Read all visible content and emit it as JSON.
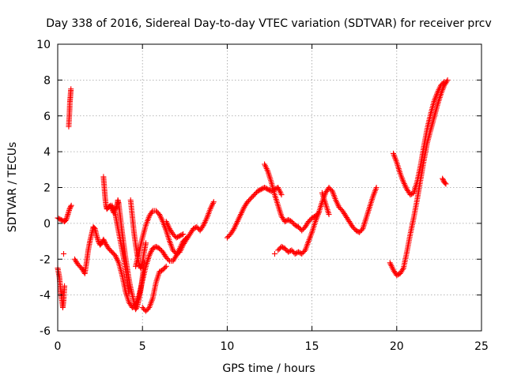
{
  "chart_data": {
    "type": "scatter",
    "title": "Day 338 of 2016, Sidereal Day-to-day VTEC variation (SDTVAR) for receiver prcv",
    "xlabel": "GPS time / hours",
    "ylabel": "SDTVAR / TECUs",
    "xlim": [
      0,
      25
    ],
    "ylim": [
      -6,
      10
    ],
    "xticks": [
      0,
      5,
      10,
      15,
      20,
      25
    ],
    "yticks": [
      -6,
      -4,
      -2,
      0,
      2,
      4,
      6,
      8,
      10
    ],
    "grid": true,
    "marker": "+",
    "color": "#ff0000",
    "series": [
      {
        "name": "SDTVAR",
        "segments": [
          [
            [
              0.0,
              0.3
            ],
            [
              0.2,
              0.2
            ],
            [
              0.4,
              0.1
            ],
            [
              0.5,
              0.2
            ],
            [
              0.6,
              0.5
            ],
            [
              0.7,
              0.8
            ],
            [
              0.8,
              1.0
            ]
          ],
          [
            [
              0.0,
              -2.5
            ],
            [
              0.1,
              -3.0
            ],
            [
              0.15,
              -3.5
            ],
            [
              0.2,
              -3.9
            ],
            [
              0.25,
              -4.3
            ],
            [
              0.3,
              -4.7
            ],
            [
              0.35,
              -4.3
            ],
            [
              0.4,
              -3.5
            ]
          ],
          [
            [
              0.35,
              -1.7
            ]
          ],
          [
            [
              0.65,
              5.4
            ],
            [
              0.7,
              6.3
            ],
            [
              0.72,
              6.8
            ],
            [
              0.75,
              7.1
            ],
            [
              0.78,
              7.5
            ]
          ],
          [
            [
              1.0,
              -2.0
            ],
            [
              1.2,
              -2.3
            ],
            [
              1.4,
              -2.5
            ],
            [
              1.6,
              -2.8
            ],
            [
              1.7,
              -2.2
            ],
            [
              1.8,
              -1.5
            ],
            [
              1.9,
              -1.0
            ],
            [
              2.0,
              -0.6
            ],
            [
              2.1,
              -0.2
            ],
            [
              2.2,
              -0.3
            ],
            [
              2.3,
              -0.7
            ],
            [
              2.4,
              -1.0
            ],
            [
              2.5,
              -1.2
            ],
            [
              2.6,
              -1.1
            ],
            [
              2.7,
              -0.9
            ],
            [
              2.8,
              -1.1
            ],
            [
              3.0,
              -1.4
            ],
            [
              3.2,
              -1.6
            ],
            [
              3.4,
              -1.8
            ],
            [
              3.6,
              -2.2
            ],
            [
              3.8,
              -2.9
            ],
            [
              4.0,
              -3.8
            ],
            [
              4.2,
              -4.4
            ],
            [
              4.4,
              -4.7
            ],
            [
              4.6,
              -4.5
            ],
            [
              4.8,
              -4.0
            ],
            [
              5.0,
              -3.2
            ],
            [
              5.2,
              -2.4
            ],
            [
              5.4,
              -1.8
            ],
            [
              5.6,
              -1.4
            ],
            [
              5.8,
              -1.3
            ],
            [
              6.0,
              -1.4
            ],
            [
              6.2,
              -1.6
            ],
            [
              6.4,
              -1.9
            ],
            [
              6.6,
              -2.1
            ],
            [
              6.8,
              -2.1
            ],
            [
              7.0,
              -1.8
            ],
            [
              7.2,
              -1.4
            ],
            [
              7.4,
              -1.0
            ],
            [
              7.6,
              -0.8
            ]
          ],
          [
            [
              2.7,
              2.6
            ],
            [
              2.75,
              2.0
            ],
            [
              2.8,
              1.4
            ],
            [
              2.85,
              1.0
            ],
            [
              2.9,
              0.8
            ],
            [
              3.0,
              0.9
            ],
            [
              3.1,
              1.0
            ],
            [
              3.2,
              0.8
            ],
            [
              3.3,
              0.6
            ],
            [
              3.4,
              0.8
            ],
            [
              3.5,
              1.0
            ],
            [
              3.55,
              1.3
            ],
            [
              3.6,
              1.1
            ],
            [
              3.7,
              0.3
            ],
            [
              3.8,
              -0.5
            ],
            [
              3.9,
              -1.2
            ],
            [
              4.0,
              -1.9
            ],
            [
              4.1,
              -2.5
            ],
            [
              4.2,
              -3.1
            ],
            [
              4.3,
              -3.6
            ],
            [
              4.4,
              -4.0
            ],
            [
              4.5,
              -4.4
            ],
            [
              4.6,
              -4.8
            ],
            [
              4.7,
              -4.6
            ],
            [
              4.8,
              -4.2
            ],
            [
              4.9,
              -3.7
            ],
            [
              5.0,
              -3.0
            ],
            [
              5.1,
              -2.2
            ]
          ],
          [
            [
              3.2,
              1.0
            ],
            [
              3.4,
              0.5
            ],
            [
              3.6,
              -0.5
            ],
            [
              3.8,
              -1.5
            ],
            [
              4.0,
              -2.5
            ],
            [
              4.1,
              -3.2
            ],
            [
              4.2,
              -3.9
            ]
          ],
          [
            [
              4.3,
              1.3
            ],
            [
              4.4,
              0.4
            ],
            [
              4.5,
              -0.5
            ],
            [
              4.6,
              -1.2
            ],
            [
              4.7,
              -1.8
            ],
            [
              4.8,
              -2.3
            ],
            [
              4.9,
              -2.5
            ],
            [
              5.0,
              -2.2
            ],
            [
              5.1,
              -1.6
            ],
            [
              5.2,
              -1.1
            ]
          ],
          [
            [
              4.6,
              -2.4
            ],
            [
              4.8,
              -1.6
            ],
            [
              5.0,
              -0.8
            ],
            [
              5.2,
              -0.1
            ],
            [
              5.4,
              0.4
            ],
            [
              5.6,
              0.7
            ],
            [
              5.8,
              0.7
            ],
            [
              6.0,
              0.5
            ],
            [
              6.2,
              0.1
            ],
            [
              6.4,
              -0.4
            ],
            [
              6.6,
              -1.0
            ],
            [
              6.8,
              -1.5
            ],
            [
              7.0,
              -1.7
            ],
            [
              7.2,
              -1.6
            ],
            [
              7.4,
              -1.2
            ],
            [
              7.6,
              -0.9
            ],
            [
              7.8,
              -0.6
            ],
            [
              8.0,
              -0.3
            ],
            [
              8.2,
              -0.2
            ],
            [
              8.4,
              -0.4
            ],
            [
              8.6,
              -0.1
            ],
            [
              8.8,
              0.3
            ],
            [
              9.0,
              0.8
            ],
            [
              9.2,
              1.2
            ]
          ],
          [
            [
              5.0,
              -4.7
            ],
            [
              5.2,
              -4.9
            ],
            [
              5.4,
              -4.7
            ],
            [
              5.6,
              -4.2
            ],
            [
              5.8,
              -3.3
            ],
            [
              6.0,
              -2.7
            ],
            [
              6.2,
              -2.6
            ],
            [
              6.4,
              -2.4
            ]
          ],
          [
            [
              6.4,
              0.1
            ],
            [
              6.6,
              -0.3
            ],
            [
              6.8,
              -0.6
            ],
            [
              7.0,
              -0.8
            ],
            [
              7.2,
              -0.7
            ],
            [
              7.4,
              -0.6
            ]
          ],
          [
            [
              10.0,
              -0.8
            ],
            [
              10.2,
              -0.6
            ],
            [
              10.4,
              -0.3
            ],
            [
              10.6,
              0.1
            ],
            [
              10.8,
              0.5
            ],
            [
              11.0,
              0.9
            ],
            [
              11.2,
              1.2
            ],
            [
              11.4,
              1.4
            ],
            [
              11.6,
              1.6
            ],
            [
              11.8,
              1.8
            ],
            [
              12.0,
              1.9
            ],
            [
              12.2,
              2.0
            ],
            [
              12.4,
              1.9
            ],
            [
              12.6,
              1.8
            ],
            [
              12.8,
              1.9
            ],
            [
              13.0,
              2.0
            ],
            [
              13.2,
              1.6
            ]
          ],
          [
            [
              12.2,
              3.3
            ],
            [
              12.4,
              2.9
            ],
            [
              12.6,
              2.3
            ],
            [
              12.8,
              1.6
            ],
            [
              13.0,
              1.0
            ],
            [
              13.2,
              0.4
            ],
            [
              13.4,
              0.1
            ],
            [
              13.6,
              0.2
            ],
            [
              13.8,
              0.1
            ],
            [
              14.0,
              -0.1
            ],
            [
              14.2,
              -0.2
            ],
            [
              14.4,
              -0.4
            ],
            [
              14.6,
              -0.2
            ],
            [
              14.8,
              0.1
            ],
            [
              15.0,
              0.3
            ],
            [
              15.2,
              0.4
            ],
            [
              15.4,
              0.6
            ]
          ],
          [
            [
              12.8,
              -1.7
            ]
          ],
          [
            [
              13.0,
              -1.5
            ],
            [
              13.2,
              -1.3
            ],
            [
              13.4,
              -1.4
            ],
            [
              13.6,
              -1.6
            ],
            [
              13.8,
              -1.5
            ],
            [
              14.0,
              -1.7
            ],
            [
              14.2,
              -1.6
            ],
            [
              14.4,
              -1.7
            ],
            [
              14.6,
              -1.5
            ],
            [
              14.8,
              -1.0
            ],
            [
              15.0,
              -0.5
            ],
            [
              15.2,
              0.1
            ],
            [
              15.4,
              0.6
            ],
            [
              15.6,
              1.2
            ],
            [
              15.8,
              1.7
            ],
            [
              16.0,
              2.0
            ],
            [
              16.2,
              1.8
            ],
            [
              16.4,
              1.3
            ],
            [
              16.6,
              0.9
            ],
            [
              16.8,
              0.7
            ],
            [
              17.0,
              0.4
            ],
            [
              17.2,
              0.1
            ],
            [
              17.4,
              -0.2
            ],
            [
              17.6,
              -0.4
            ],
            [
              17.8,
              -0.5
            ],
            [
              18.0,
              -0.3
            ],
            [
              18.2,
              0.3
            ],
            [
              18.4,
              0.9
            ],
            [
              18.6,
              1.5
            ],
            [
              18.8,
              2.0
            ]
          ],
          [
            [
              15.6,
              1.7
            ],
            [
              15.8,
              1.1
            ],
            [
              16.0,
              0.5
            ]
          ],
          [
            [
              19.6,
              -2.2
            ],
            [
              19.8,
              -2.6
            ],
            [
              20.0,
              -2.9
            ],
            [
              20.2,
              -2.8
            ],
            [
              20.4,
              -2.5
            ],
            [
              20.6,
              -1.6
            ],
            [
              20.8,
              -0.6
            ],
            [
              21.0,
              0.3
            ],
            [
              21.2,
              1.3
            ],
            [
              21.4,
              2.4
            ],
            [
              21.6,
              3.5
            ],
            [
              21.8,
              4.5
            ],
            [
              22.0,
              5.2
            ],
            [
              22.2,
              5.9
            ],
            [
              22.4,
              6.6
            ],
            [
              22.6,
              7.2
            ],
            [
              22.8,
              7.7
            ],
            [
              23.0,
              8.0
            ]
          ],
          [
            [
              19.8,
              3.9
            ],
            [
              20.0,
              3.4
            ],
            [
              20.2,
              2.8
            ],
            [
              20.4,
              2.3
            ],
            [
              20.6,
              1.9
            ],
            [
              20.8,
              1.6
            ],
            [
              21.0,
              1.7
            ],
            [
              21.2,
              2.3
            ],
            [
              21.4,
              3.2
            ],
            [
              21.6,
              4.3
            ],
            [
              21.8,
              5.3
            ],
            [
              22.0,
              6.1
            ],
            [
              22.2,
              6.8
            ],
            [
              22.4,
              7.3
            ],
            [
              22.6,
              7.7
            ],
            [
              22.8,
              7.9
            ]
          ],
          [
            [
              22.7,
              2.5
            ],
            [
              22.8,
              2.3
            ],
            [
              22.9,
              2.2
            ]
          ]
        ]
      }
    ]
  }
}
